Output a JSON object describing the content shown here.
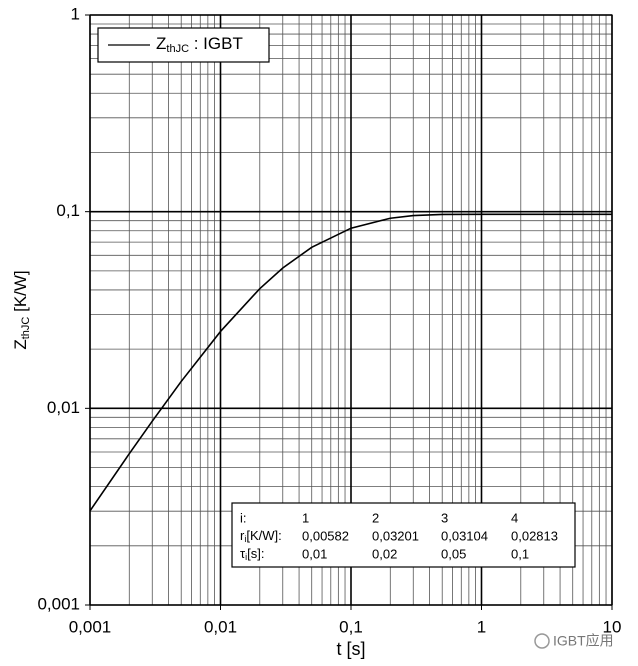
{
  "chart_data": {
    "type": "line",
    "xscale": "log",
    "yscale": "log",
    "grid": true,
    "minor_grid": true,
    "x_label": "t [s]",
    "y_label": {
      "main": "Z",
      "sub": "thJC",
      "rest": " [K/W]"
    },
    "xlim": [
      0.001,
      10
    ],
    "ylim": [
      0.001,
      1
    ],
    "xticks": [
      {
        "value": 0.001,
        "label": "0,001"
      },
      {
        "value": 0.01,
        "label": "0,01"
      },
      {
        "value": 0.1,
        "label": "0,1"
      },
      1,
      10
    ],
    "yticks": [
      {
        "value": 0.001,
        "label": "0,001"
      },
      {
        "value": 0.01,
        "label": "0,01"
      },
      {
        "value": 0.1,
        "label": "0,1"
      },
      1
    ],
    "x": [
      0.001,
      0.002,
      0.003,
      0.005,
      0.01,
      0.02,
      0.03,
      0.05,
      0.1,
      0.2,
      0.3,
      0.5,
      1,
      2,
      5,
      10
    ],
    "series": [
      {
        "name": {
          "main": "Z",
          "sub": "thJC",
          "rest": " : IGBT"
        },
        "color": "#000000",
        "values": [
          0.00301,
          0.00588,
          0.0086,
          0.0137,
          0.0246,
          0.0406,
          0.0517,
          0.0659,
          0.0824,
          0.0926,
          0.0955,
          0.0968,
          0.097,
          0.097,
          0.097,
          0.097
        ]
      }
    ],
    "legend_position": "upper left",
    "table": {
      "header": [
        "i:",
        "1",
        "2",
        "3",
        "4"
      ],
      "rows": [
        {
          "label": {
            "main": "r",
            "sub": "i",
            "rest": "[K/W]:"
          },
          "cells": [
            "0,00582",
            "0,03201",
            "0,03104",
            "0,02813"
          ]
        },
        {
          "label": {
            "main": "τ",
            "sub": "i",
            "rest": "[s]:"
          },
          "cells": [
            "0,01",
            "0,02",
            "0,05",
            "0,1"
          ]
        }
      ]
    },
    "watermark": "IGBT应用"
  }
}
